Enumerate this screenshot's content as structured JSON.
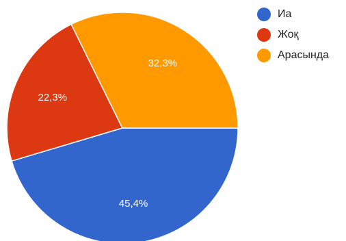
{
  "chart_data": {
    "type": "pie",
    "title": "",
    "slices": [
      {
        "name": "Иа",
        "value": 45.4,
        "label": "45,4%",
        "color": "#3366cc"
      },
      {
        "name": "Жоқ",
        "value": 22.3,
        "label": "22,3%",
        "color": "#dc3912"
      },
      {
        "name": "Арасында",
        "value": 32.3,
        "label": "32,3%",
        "color": "#ff9900"
      }
    ],
    "start_angle": "3 o'clock",
    "direction": "clockwise",
    "legend_position": "top-right"
  }
}
